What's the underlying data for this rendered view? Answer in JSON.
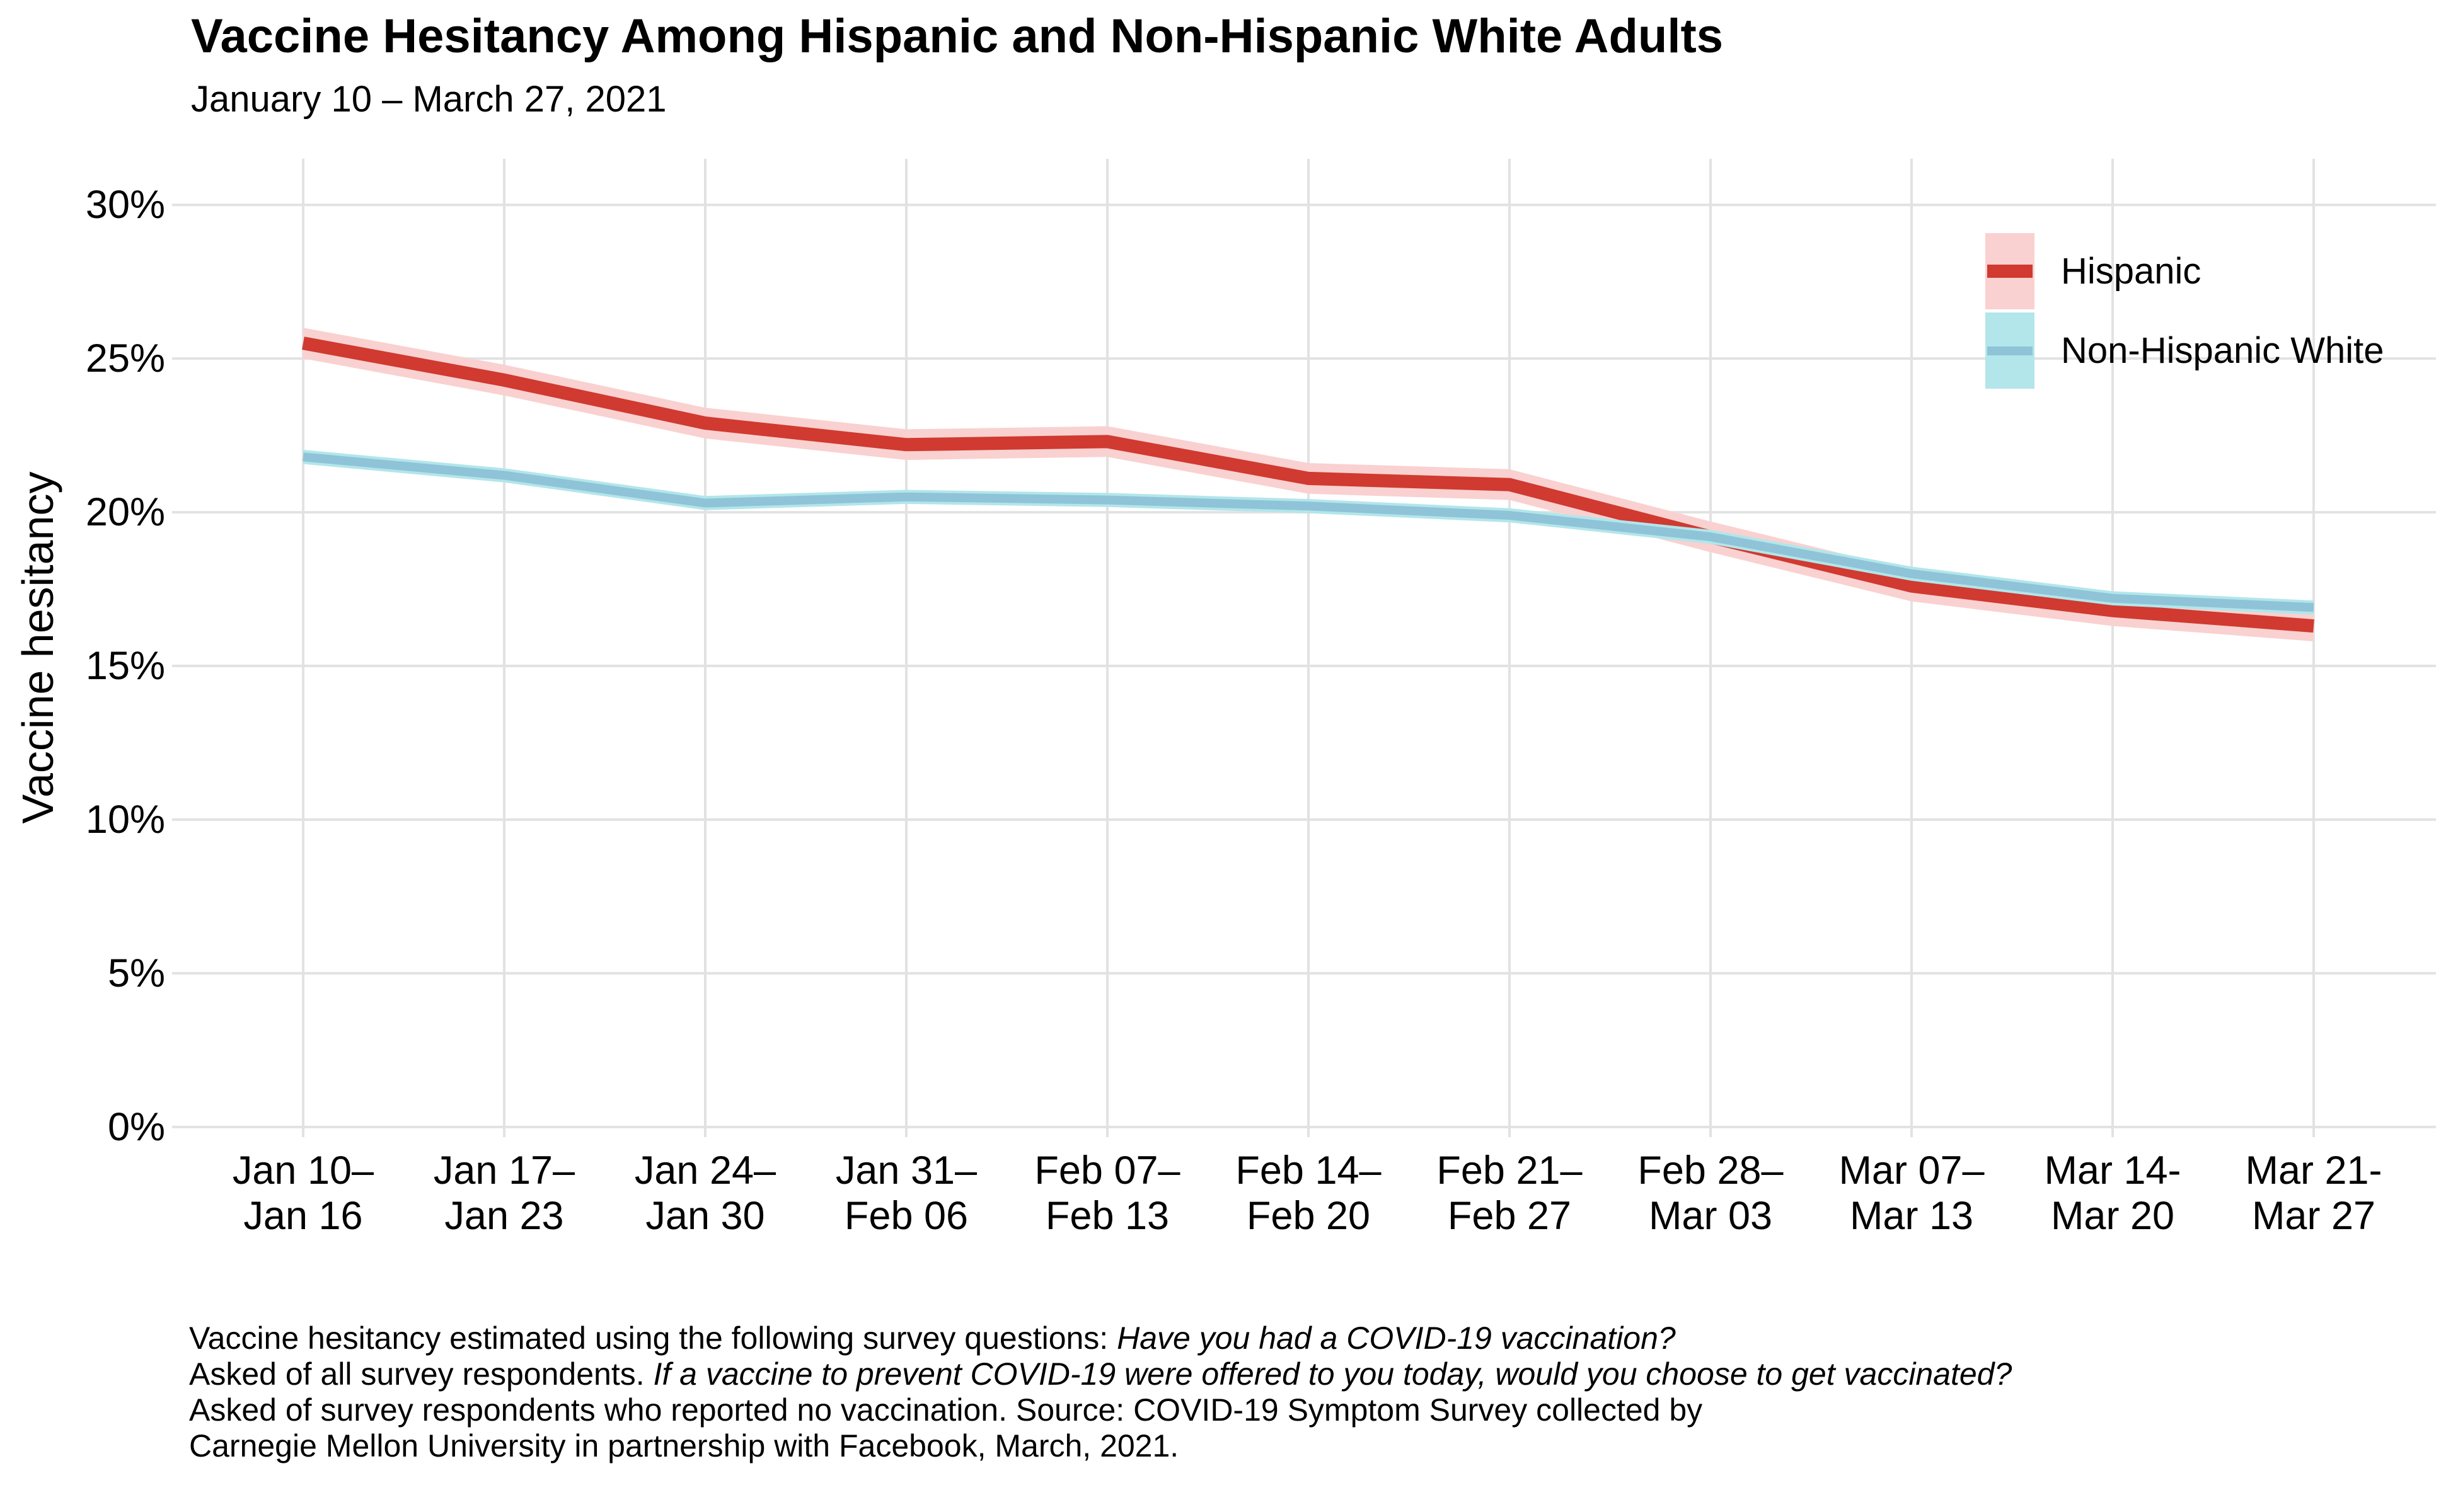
{
  "chart_data": {
    "type": "line",
    "title": "Vaccine Hesitancy Among Hispanic and Non-Hispanic White Adults",
    "subtitle": "January 10 – March 27, 2021",
    "ylabel": "Vaccine hesitancy",
    "xlabel": "",
    "y_ticks": [
      0,
      5,
      10,
      15,
      20,
      25,
      30
    ],
    "y_tick_suffix": "%",
    "ylim": [
      -0.33,
      31.5
    ],
    "grid": true,
    "legend_position": "top-right",
    "gridline_color": "#e2e2e2",
    "text_color": "#000000",
    "categories": [
      [
        "Jan 10–",
        "Jan 16"
      ],
      [
        "Jan 17–",
        "Jan 23"
      ],
      [
        "Jan 24–",
        "Jan 30"
      ],
      [
        "Jan 31–",
        "Feb 06"
      ],
      [
        "Feb 07–",
        "Feb 13"
      ],
      [
        "Feb 14–",
        "Feb 20"
      ],
      [
        "Feb 21–",
        "Feb 27"
      ],
      [
        "Feb 28–",
        "Mar 03"
      ],
      [
        "Mar 07–",
        "Mar 13"
      ],
      [
        "Mar 14-",
        "Mar 20"
      ],
      [
        "Mar 21-",
        "Mar 27"
      ]
    ],
    "series": [
      {
        "name": "Hispanic",
        "color": "#d03a30",
        "band_color": "#f9d1d0",
        "band_half": 0.5,
        "line_width": 21,
        "values": [
          25.5,
          24.3,
          22.9,
          22.2,
          22.3,
          21.1,
          20.9,
          19.2,
          17.6,
          16.8,
          16.3
        ]
      },
      {
        "name": "Non-Hispanic White",
        "color": "#8fc3d8",
        "band_color": "#b2e6ea",
        "band_half": 0.23,
        "line_width": 14,
        "values": [
          21.8,
          21.2,
          20.3,
          20.5,
          20.4,
          20.2,
          19.9,
          19.2,
          18.0,
          17.2,
          16.9
        ]
      }
    ]
  },
  "caption": {
    "lines": [
      [
        {
          "text": "Vaccine hesitancy estimated using the following survey questions: ",
          "italic": false
        },
        {
          "text": "Have you had a COVID-19 vaccination?",
          "italic": true
        }
      ],
      [
        {
          "text": "Asked of all survey respondents. ",
          "italic": false
        },
        {
          "text": "If a vaccine to prevent COVID-19 were offered to you today, would you choose to get vaccinated?",
          "italic": true
        }
      ],
      [
        {
          "text": "Asked of survey respondents who reported no vaccination. Source: COVID-19 Symptom Survey collected by",
          "italic": false
        }
      ],
      [
        {
          "text": "Carnegie Mellon University in partnership with Facebook, March, 2021.",
          "italic": false
        }
      ]
    ]
  }
}
